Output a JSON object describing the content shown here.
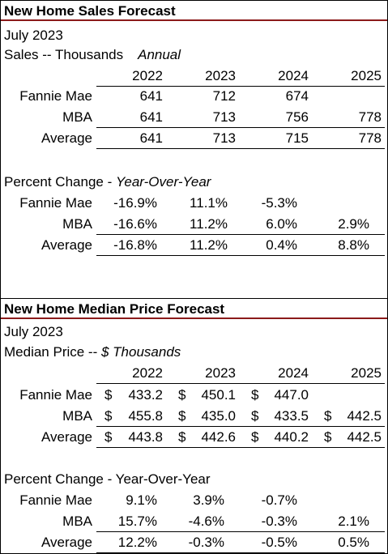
{
  "sales": {
    "title": "New Home Sales Forecast",
    "date": "July 2023",
    "subtitle_a": "Sales -- Thousands",
    "subtitle_b": "Annual",
    "years": [
      "2022",
      "2023",
      "2024",
      "2025"
    ],
    "rows": [
      {
        "label": "Fannie Mae",
        "values": [
          "641",
          "712",
          "674",
          ""
        ]
      },
      {
        "label": "MBA",
        "values": [
          "641",
          "713",
          "756",
          "778"
        ]
      },
      {
        "label": "Average",
        "values": [
          "641",
          "713",
          "715",
          "778"
        ]
      }
    ],
    "pct_title_a": "Percent Change - ",
    "pct_title_b": "Year-Over-Year",
    "pct_rows": [
      {
        "label": "Fannie Mae",
        "values": [
          "-16.9%",
          "11.1%",
          "-5.3%",
          ""
        ]
      },
      {
        "label": "MBA",
        "values": [
          "-16.6%",
          "11.2%",
          "6.0%",
          "2.9%"
        ]
      },
      {
        "label": "Average",
        "values": [
          "-16.8%",
          "11.2%",
          "0.4%",
          "8.8%"
        ]
      }
    ]
  },
  "price": {
    "title": "New Home Median Price Forecast",
    "date": "July 2023",
    "subtitle_a": "Median Price -- ",
    "subtitle_b": "$ Thousands",
    "currency": "$",
    "years": [
      "2022",
      "2023",
      "2024",
      "2025"
    ],
    "rows": [
      {
        "label": "Fannie Mae",
        "values": [
          "433.2",
          "450.1",
          "447.0",
          ""
        ]
      },
      {
        "label": "MBA",
        "values": [
          "455.8",
          "435.0",
          "433.5",
          "442.5"
        ]
      },
      {
        "label": "Average",
        "values": [
          "443.8",
          "442.6",
          "440.2",
          "442.5"
        ]
      }
    ],
    "pct_title": "Percent Change - Year-Over-Year",
    "pct_rows": [
      {
        "label": "Fannie Mae",
        "values": [
          "9.1%",
          "3.9%",
          "-0.7%",
          ""
        ]
      },
      {
        "label": "MBA",
        "values": [
          "15.7%",
          "-4.6%",
          "-0.3%",
          "2.1%"
        ]
      },
      {
        "label": "Average",
        "values": [
          "12.2%",
          "-0.3%",
          "-0.5%",
          "0.5%"
        ]
      }
    ]
  }
}
